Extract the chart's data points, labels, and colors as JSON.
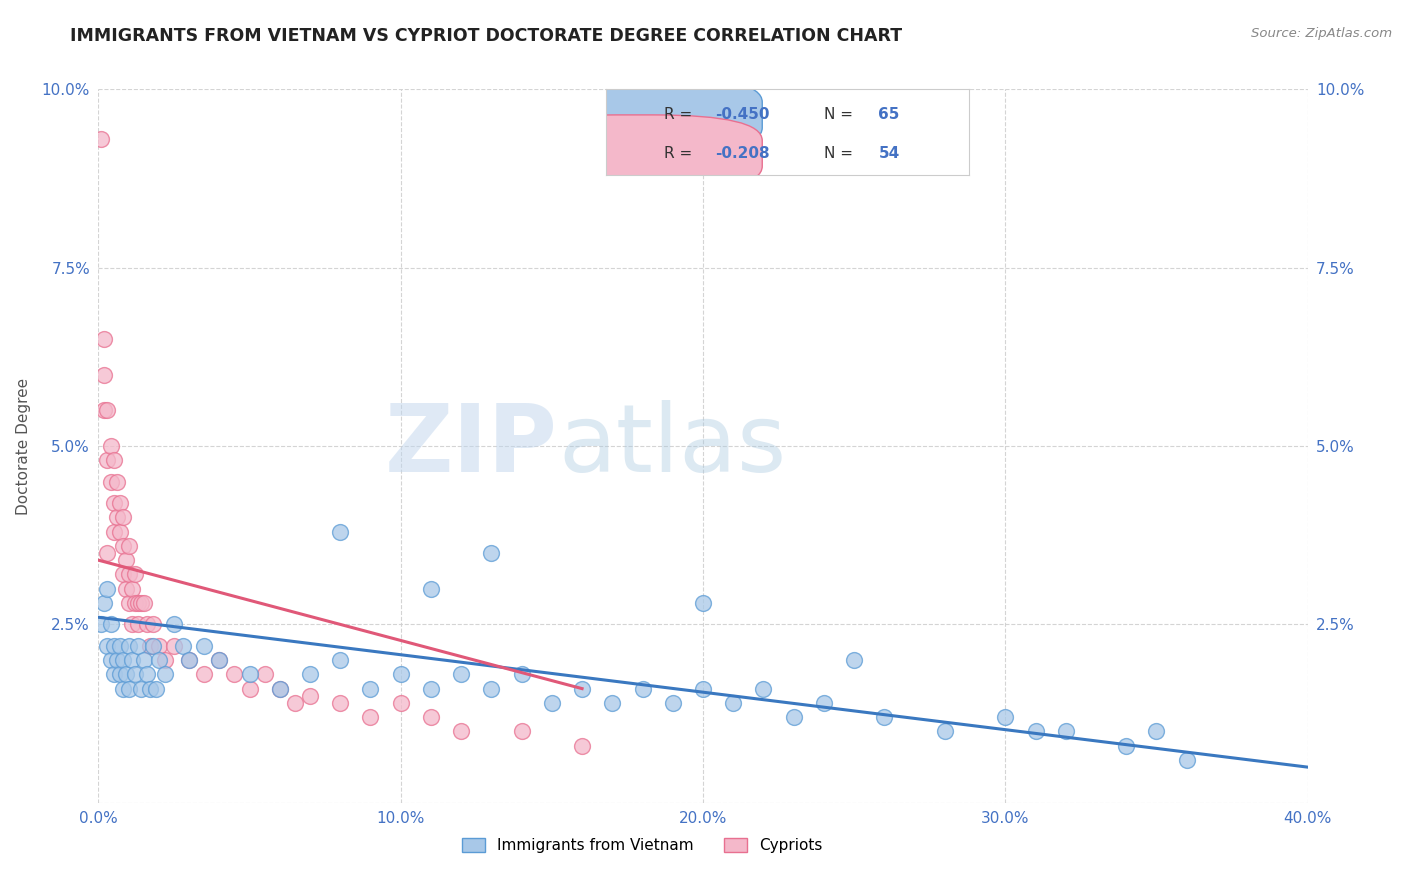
{
  "title": "IMMIGRANTS FROM VIETNAM VS CYPRIOT DOCTORATE DEGREE CORRELATION CHART",
  "source_text": "Source: ZipAtlas.com",
  "ylabel": "Doctorate Degree",
  "watermark_zip": "ZIP",
  "watermark_atlas": "atlas",
  "xlim": [
    0.0,
    0.4
  ],
  "ylim": [
    0.0,
    0.1
  ],
  "xticks": [
    0.0,
    0.1,
    0.2,
    0.3,
    0.4
  ],
  "yticks": [
    0.0,
    0.025,
    0.05,
    0.075,
    0.1
  ],
  "xtick_labels": [
    "0.0%",
    "10.0%",
    "20.0%",
    "30.0%",
    "40.0%"
  ],
  "ytick_labels": [
    "",
    "2.5%",
    "5.0%",
    "7.5%",
    "10.0%"
  ],
  "blue_scatter_x": [
    0.001,
    0.002,
    0.003,
    0.003,
    0.004,
    0.004,
    0.005,
    0.005,
    0.006,
    0.007,
    0.007,
    0.008,
    0.008,
    0.009,
    0.01,
    0.01,
    0.011,
    0.012,
    0.013,
    0.014,
    0.015,
    0.016,
    0.017,
    0.018,
    0.019,
    0.02,
    0.022,
    0.025,
    0.028,
    0.03,
    0.035,
    0.04,
    0.05,
    0.06,
    0.07,
    0.08,
    0.09,
    0.1,
    0.11,
    0.12,
    0.13,
    0.14,
    0.15,
    0.16,
    0.17,
    0.18,
    0.19,
    0.2,
    0.21,
    0.22,
    0.23,
    0.24,
    0.26,
    0.28,
    0.3,
    0.31,
    0.32,
    0.34,
    0.35,
    0.36,
    0.13,
    0.2,
    0.25,
    0.08,
    0.11
  ],
  "blue_scatter_y": [
    0.025,
    0.028,
    0.022,
    0.03,
    0.02,
    0.025,
    0.018,
    0.022,
    0.02,
    0.018,
    0.022,
    0.016,
    0.02,
    0.018,
    0.022,
    0.016,
    0.02,
    0.018,
    0.022,
    0.016,
    0.02,
    0.018,
    0.016,
    0.022,
    0.016,
    0.02,
    0.018,
    0.025,
    0.022,
    0.02,
    0.022,
    0.02,
    0.018,
    0.016,
    0.018,
    0.02,
    0.016,
    0.018,
    0.016,
    0.018,
    0.016,
    0.018,
    0.014,
    0.016,
    0.014,
    0.016,
    0.014,
    0.016,
    0.014,
    0.016,
    0.012,
    0.014,
    0.012,
    0.01,
    0.012,
    0.01,
    0.01,
    0.008,
    0.01,
    0.006,
    0.035,
    0.028,
    0.02,
    0.038,
    0.03
  ],
  "pink_scatter_x": [
    0.001,
    0.002,
    0.002,
    0.002,
    0.003,
    0.003,
    0.004,
    0.004,
    0.005,
    0.005,
    0.005,
    0.006,
    0.006,
    0.007,
    0.007,
    0.008,
    0.008,
    0.008,
    0.009,
    0.009,
    0.01,
    0.01,
    0.01,
    0.011,
    0.011,
    0.012,
    0.012,
    0.013,
    0.013,
    0.014,
    0.015,
    0.016,
    0.017,
    0.018,
    0.02,
    0.022,
    0.025,
    0.03,
    0.035,
    0.04,
    0.045,
    0.05,
    0.055,
    0.06,
    0.065,
    0.07,
    0.08,
    0.09,
    0.1,
    0.11,
    0.12,
    0.14,
    0.16,
    0.003
  ],
  "pink_scatter_y": [
    0.093,
    0.06,
    0.065,
    0.055,
    0.055,
    0.048,
    0.05,
    0.045,
    0.048,
    0.042,
    0.038,
    0.04,
    0.045,
    0.038,
    0.042,
    0.032,
    0.036,
    0.04,
    0.03,
    0.034,
    0.028,
    0.032,
    0.036,
    0.025,
    0.03,
    0.028,
    0.032,
    0.028,
    0.025,
    0.028,
    0.028,
    0.025,
    0.022,
    0.025,
    0.022,
    0.02,
    0.022,
    0.02,
    0.018,
    0.02,
    0.018,
    0.016,
    0.018,
    0.016,
    0.014,
    0.015,
    0.014,
    0.012,
    0.014,
    0.012,
    0.01,
    0.01,
    0.008,
    0.035
  ],
  "blue_line_x": [
    0.0,
    0.4
  ],
  "blue_line_y": [
    0.026,
    0.005
  ],
  "pink_line_x": [
    0.0,
    0.16
  ],
  "pink_line_y": [
    0.034,
    0.016
  ],
  "blue_dot_color": "#a8c8e8",
  "blue_edge_color": "#5b9bd5",
  "pink_dot_color": "#f4b8ca",
  "pink_edge_color": "#e87090",
  "blue_line_color": "#3a78c0",
  "pink_line_color": "#e05878",
  "grid_color": "#d0d0d0",
  "background_color": "#ffffff",
  "title_color": "#222222",
  "ylabel_color": "#555555",
  "tick_color": "#4472c4",
  "source_color": "#888888",
  "watermark_color": "#d8e8f5",
  "legend_box_color": "#e8e8ee"
}
